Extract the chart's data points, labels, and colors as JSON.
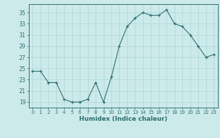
{
  "x": [
    0,
    1,
    2,
    3,
    4,
    5,
    6,
    7,
    8,
    9,
    10,
    11,
    12,
    13,
    14,
    15,
    16,
    17,
    18,
    19,
    20,
    21,
    22,
    23
  ],
  "y": [
    24.5,
    24.5,
    22.5,
    22.5,
    19.5,
    19.0,
    19.0,
    19.5,
    22.5,
    19.0,
    23.5,
    29.0,
    32.5,
    34.0,
    35.0,
    34.5,
    34.5,
    35.5,
    33.0,
    32.5,
    31.0,
    29.0,
    27.0,
    27.5
  ],
  "line_color": "#2d6e6e",
  "marker": "+",
  "bg_color": "#cceaea",
  "grid_color": "#b0d8d8",
  "xlabel": "Humidex (Indice chaleur)",
  "ylabel_ticks": [
    19,
    21,
    23,
    25,
    27,
    29,
    31,
    33,
    35
  ],
  "xticks": [
    0,
    1,
    2,
    3,
    4,
    5,
    6,
    7,
    8,
    9,
    10,
    11,
    12,
    13,
    14,
    15,
    16,
    17,
    18,
    19,
    20,
    21,
    22,
    23
  ],
  "xlim": [
    -0.5,
    23.5
  ],
  "ylim": [
    18.0,
    36.5
  ]
}
